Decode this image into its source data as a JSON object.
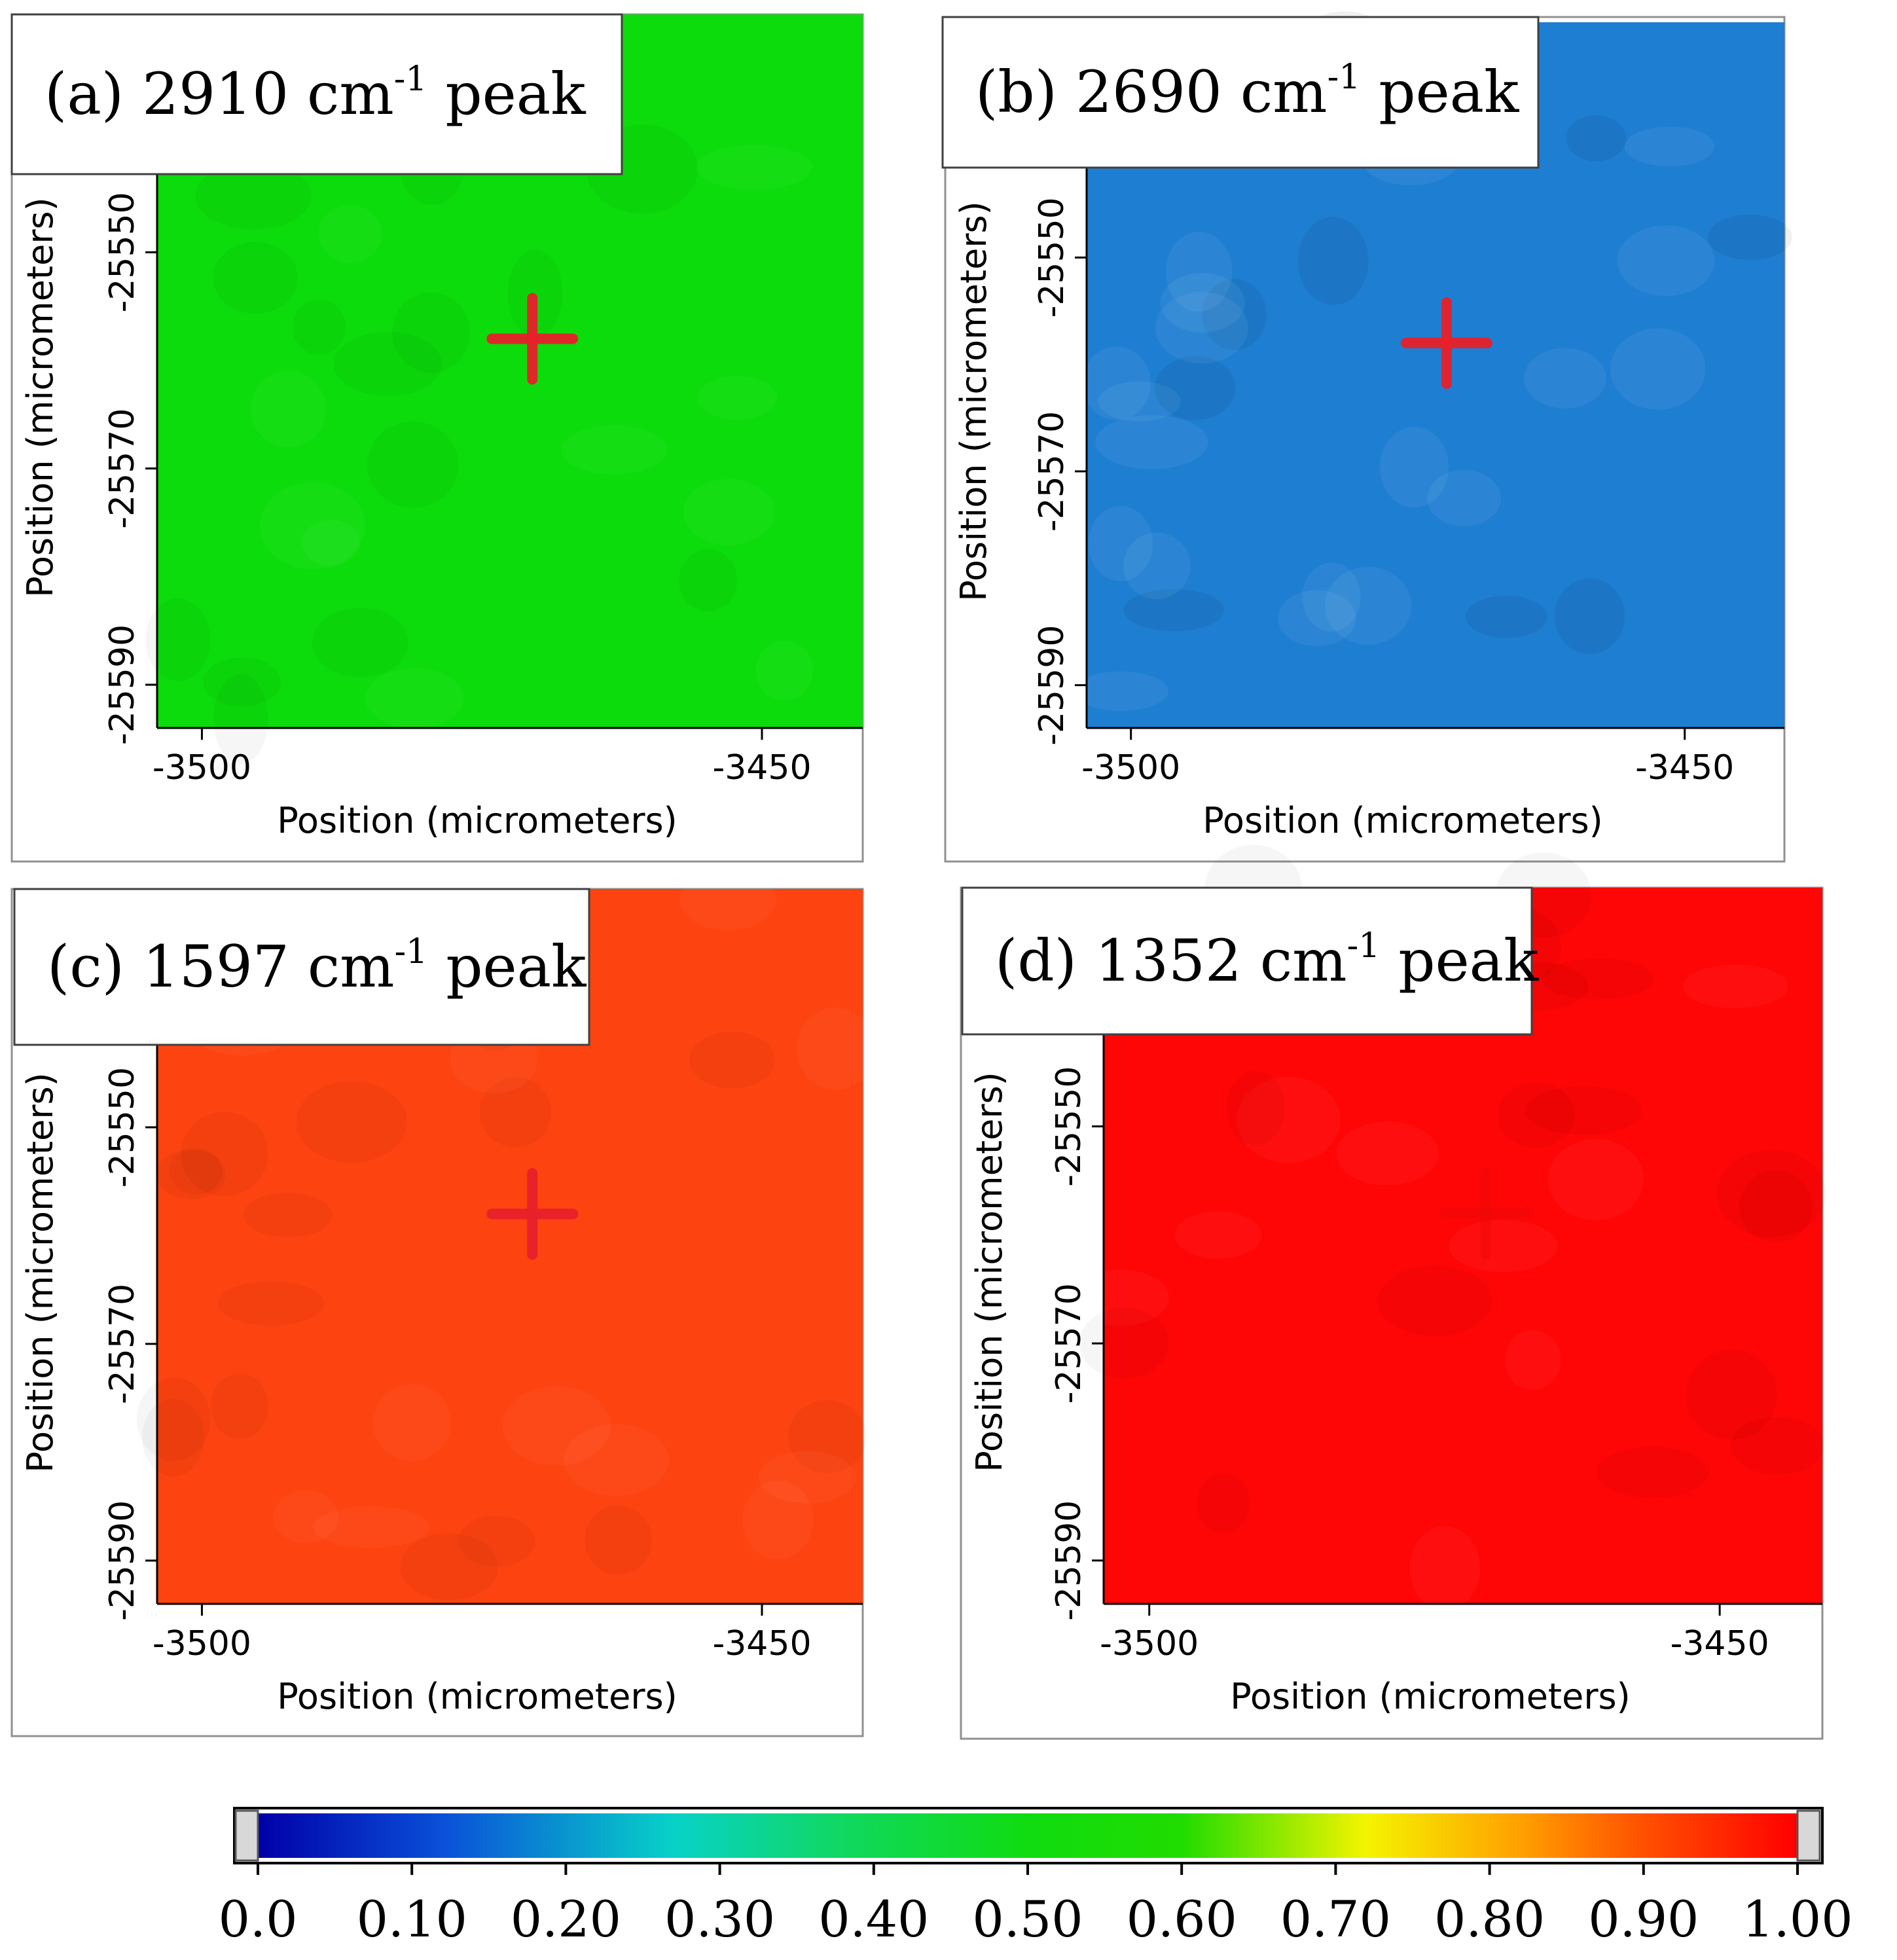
{
  "figure": {
    "axis_label": "Position (micrometers)"
  },
  "chart_data": [
    {
      "type": "heatmap",
      "label_prefix": "(a) 2910 cm",
      "label_superscript": "-1",
      "label_suffix": " peak",
      "xlabel": "Position (micrometers)",
      "ylabel": "Position (micrometers)",
      "x_ticks": [
        "-3500",
        "-3450"
      ],
      "y_ticks": [
        "-25550",
        "-25570",
        "-25590"
      ],
      "xlim": [
        -3504,
        -3441
      ],
      "ylim": [
        -25594,
        -25528
      ],
      "intensity": 0.55,
      "fill_color": "#0ddc0c",
      "marker": {
        "type": "cross",
        "x": -3470.5,
        "y": -25558,
        "color": "#e8202a"
      }
    },
    {
      "type": "heatmap",
      "label_prefix": "(b) 2690 cm",
      "label_superscript": "-1",
      "label_suffix": " peak",
      "xlabel": "Position (micrometers)",
      "ylabel": "Position (micrometers)",
      "x_ticks": [
        "-3500",
        "-3450"
      ],
      "y_ticks": [
        "-25550",
        "-25570",
        "-25590"
      ],
      "xlim": [
        -3504,
        -3441
      ],
      "ylim": [
        -25594,
        -25528
      ],
      "intensity": 0.17,
      "fill_color": "#1e7ed2",
      "marker": {
        "type": "cross",
        "x": -3471.5,
        "y": -25558,
        "color": "#e8202a"
      }
    },
    {
      "type": "heatmap",
      "label_prefix": "(c) 1597 cm",
      "label_superscript": "-1",
      "label_suffix": " peak",
      "xlabel": "Position (micrometers)",
      "ylabel": "Position (micrometers)",
      "x_ticks": [
        "-3500",
        "-3450"
      ],
      "y_ticks": [
        "-25550",
        "-25570",
        "-25590"
      ],
      "xlim": [
        -3504,
        -3441
      ],
      "ylim": [
        -25594,
        -25528
      ],
      "intensity": 0.92,
      "fill_color": "#fd4310",
      "marker": {
        "type": "cross",
        "x": -3470.5,
        "y": -25558,
        "color": "#e8202a"
      }
    },
    {
      "type": "heatmap",
      "label_prefix": "(d) 1352 cm",
      "label_superscript": "-1",
      "label_suffix": " peak",
      "xlabel": "Position (micrometers)",
      "ylabel": "Position (micrometers)",
      "x_ticks": [
        "-3500",
        "-3450"
      ],
      "y_ticks": [
        "-25550",
        "-25570",
        "-25590"
      ],
      "xlim": [
        -3504,
        -3441
      ],
      "ylim": [
        -25594,
        -25528
      ],
      "intensity": 0.99,
      "fill_color": "#fe0606",
      "marker": {
        "type": "cross",
        "x": -3470.5,
        "y": -25558,
        "color": "#f00808"
      }
    },
    {
      "type": "colorbar",
      "range": [
        0,
        1
      ],
      "tick_labels": [
        "0.0",
        "0.10",
        "0.20",
        "0.30",
        "0.40",
        "0.50",
        "0.60",
        "0.70",
        "0.80",
        "0.90",
        "1.00"
      ],
      "tick_values": [
        0.0,
        0.1,
        0.2,
        0.3,
        0.4,
        0.5,
        0.6,
        0.7,
        0.8,
        0.9,
        1.0
      ],
      "gradient": [
        {
          "v": 0.0,
          "color": "#0000a8"
        },
        {
          "v": 0.12,
          "color": "#0a50d8"
        },
        {
          "v": 0.27,
          "color": "#08d2c8"
        },
        {
          "v": 0.38,
          "color": "#10d860"
        },
        {
          "v": 0.5,
          "color": "#10dc10"
        },
        {
          "v": 0.6,
          "color": "#20dc00"
        },
        {
          "v": 0.72,
          "color": "#f4f400"
        },
        {
          "v": 0.82,
          "color": "#ffa000"
        },
        {
          "v": 0.9,
          "color": "#ff5000"
        },
        {
          "v": 1.0,
          "color": "#ff0000"
        }
      ]
    }
  ]
}
